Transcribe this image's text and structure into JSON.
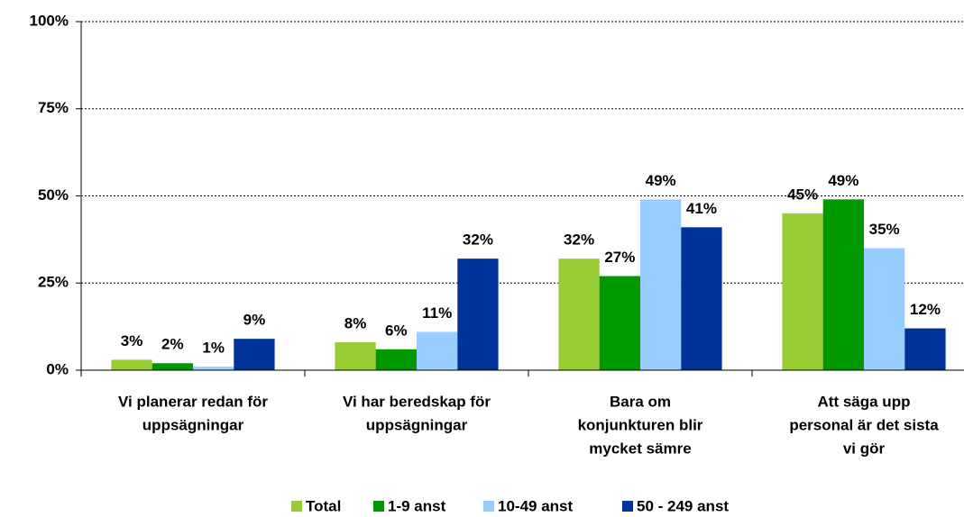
{
  "chart_data": {
    "type": "bar",
    "categories": [
      [
        "Vi planerar redan för",
        "uppsägningar"
      ],
      [
        "Vi har beredskap för",
        "uppsägningar"
      ],
      [
        "Bara om",
        "konjunkturen blir",
        "mycket sämre"
      ],
      [
        "Att säga upp",
        "personal är det sista",
        "vi gör"
      ]
    ],
    "series": [
      {
        "name": "Total",
        "color": "#99cc33",
        "values": [
          3,
          8,
          32,
          45
        ],
        "value_labels": [
          "3%",
          "8%",
          "32%",
          "45%"
        ]
      },
      {
        "name": "1-9 anst",
        "color": "#009900",
        "values": [
          2,
          6,
          27,
          49
        ],
        "value_labels": [
          "2%",
          "6%",
          "27%",
          "49%"
        ]
      },
      {
        "name": "10-49 anst",
        "color": "#99ccff",
        "values": [
          1,
          11,
          49,
          35
        ],
        "value_labels": [
          "1%",
          "11%",
          "49%",
          "35%"
        ]
      },
      {
        "name": "50 - 249 anst",
        "color": "#003399",
        "values": [
          9,
          32,
          41,
          12
        ],
        "value_labels": [
          "9%",
          "32%",
          "41%",
          "12%"
        ]
      }
    ],
    "ylim": [
      0,
      100
    ],
    "yticks": [
      {
        "value": 0,
        "label": "0%"
      },
      {
        "value": 25,
        "label": "25%"
      },
      {
        "value": 50,
        "label": "50%"
      },
      {
        "value": 75,
        "label": "75%"
      },
      {
        "value": 100,
        "label": "100%"
      }
    ],
    "grid": true,
    "legend": "bottom"
  }
}
